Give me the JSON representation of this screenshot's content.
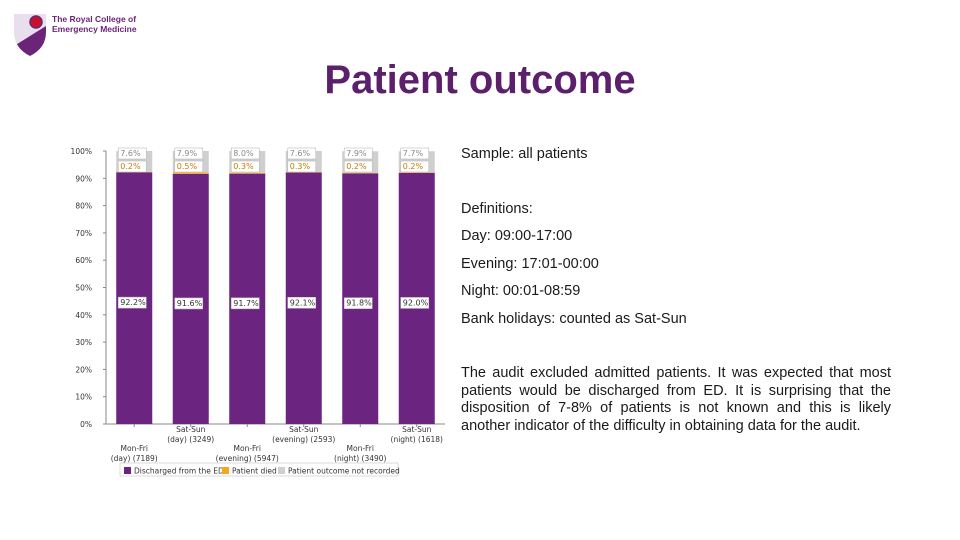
{
  "logo": {
    "line1": "The Royal College of",
    "line2": "Emergency Medicine",
    "accent_color": "#6b2478"
  },
  "page_title": "Patient outcome",
  "notes": {
    "sample": "Sample: all patients",
    "definitions_heading": "Definitions:",
    "day": "Day: 09:00-17:00",
    "evening": "Evening: 17:01-00:00",
    "night": "Night: 00:01-08:59",
    "bank_holidays": "Bank holidays: counted as Sat-Sun",
    "paragraph": "The audit excluded admitted patients. It was expected that most patients would be discharged from ED. It is surprising that the disposition of 7-8% of patients is not known and this is likely another indicator of the difficulty in obtaining data for the audit."
  },
  "chart_data": {
    "type": "bar",
    "stacked": true,
    "title": "",
    "xlabel": "",
    "ylabel": "",
    "ylim": [
      0,
      100
    ],
    "grid": false,
    "legend_position": "bottom",
    "y_ticks": [
      "0%",
      "10%",
      "20%",
      "30%",
      "40%",
      "50%",
      "60%",
      "70%",
      "80%",
      "90%",
      "100%"
    ],
    "categories": [
      [
        "Mon-Fri",
        "(day) (7189)"
      ],
      [
        "Sat-Sun",
        "(day) (3249)"
      ],
      [
        "Mon-Fri",
        "(evening) (5947)"
      ],
      [
        "Sat-Sun",
        "(evening) (2593)"
      ],
      [
        "Mon-Fri",
        "(night) (3490)"
      ],
      [
        "Sat-Sun",
        "(night) (1618)"
      ]
    ],
    "series": [
      {
        "name": "Discharged from the ED",
        "color": "#6b2480",
        "values": [
          92.2,
          91.6,
          91.7,
          92.1,
          91.8,
          92.0
        ],
        "labels": [
          "92.2%",
          "91.6%",
          "91.7%",
          "92.1%",
          "91.8%",
          "92.0%"
        ]
      },
      {
        "name": "Patient died",
        "color": "#f5a623",
        "values": [
          0.2,
          0.5,
          0.3,
          0.3,
          0.2,
          0.2
        ],
        "labels": [
          "0.2%",
          "0.5%",
          "0.3%",
          "0.3%",
          "0.2%",
          "0.2%"
        ]
      },
      {
        "name": "Patient outcome not recorded",
        "color": "#cfcfcf",
        "values": [
          7.6,
          7.9,
          8.0,
          7.6,
          7.9,
          7.7
        ],
        "labels": [
          "7.6%",
          "7.9%",
          "8.0%",
          "7.6%",
          "7.9%",
          "7.7%"
        ]
      }
    ]
  }
}
